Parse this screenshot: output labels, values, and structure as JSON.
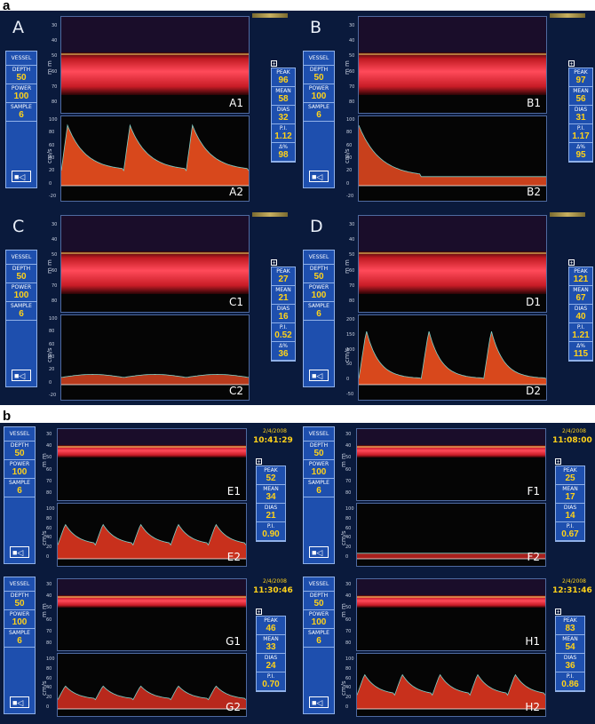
{
  "figure": {
    "section_a_letter": "a",
    "section_b_letter": "b",
    "setting_labels": {
      "vessel": "VESSEL",
      "depth": "DEPTH",
      "power": "POWER",
      "sample": "SAMPLE"
    },
    "stat_labels": {
      "peak": "PEAK",
      "mean": "MEAN",
      "dias": "DIAS",
      "pi": "P.I.",
      "delta": "Δ%"
    },
    "units": {
      "mm": "m m",
      "cms": "cm/s"
    },
    "mmode_ticks": [
      "30",
      "40",
      "50",
      "60",
      "70",
      "80"
    ],
    "spec_ticks_a": [
      "100",
      "80",
      "60",
      "40",
      "20",
      "0",
      "-20"
    ],
    "spec_ticks_d": [
      "200",
      "150",
      "100",
      "50",
      "0",
      "-50"
    ],
    "spec_ticks_b": [
      "100",
      "80",
      "60",
      "40",
      "20",
      "0"
    ],
    "plus": "+"
  },
  "panels": {
    "A": {
      "letter": "A",
      "m_label": "A1",
      "s_label": "A2",
      "depth": "50",
      "power": "100",
      "sample": "6",
      "peak": "96",
      "mean": "58",
      "dias": "32",
      "pi": "1.12",
      "delta": "98"
    },
    "B": {
      "letter": "B",
      "m_label": "B1",
      "s_label": "B2",
      "depth": "50",
      "power": "100",
      "sample": "6",
      "peak": "97",
      "mean": "56",
      "dias": "31",
      "pi": "1.17",
      "delta": "95"
    },
    "C": {
      "letter": "C",
      "m_label": "C1",
      "s_label": "C2",
      "depth": "50",
      "power": "100",
      "sample": "6",
      "peak": "27",
      "mean": "21",
      "dias": "16",
      "pi": "0.52",
      "delta": "36"
    },
    "D": {
      "letter": "D",
      "m_label": "D1",
      "s_label": "D2",
      "depth": "50",
      "power": "100",
      "sample": "6",
      "peak": "121",
      "mean": "67",
      "dias": "40",
      "pi": "1.21",
      "delta": "115"
    },
    "E": {
      "m_label": "E1",
      "s_label": "E2",
      "date": "2/4/2008",
      "time": "10:41:29",
      "depth": "50",
      "power": "100",
      "sample": "6",
      "peak": "52",
      "mean": "34",
      "dias": "21",
      "pi": "0.90"
    },
    "F": {
      "m_label": "F1",
      "s_label": "F2",
      "date": "2/4/2008",
      "time": "11:08:00",
      "depth": "50",
      "power": "100",
      "sample": "6",
      "peak": "25",
      "mean": "17",
      "dias": "14",
      "pi": "0.67"
    },
    "G": {
      "m_label": "G1",
      "s_label": "G2",
      "date": "2/4/2008",
      "time": "11:30:46",
      "depth": "50",
      "power": "100",
      "sample": "6",
      "peak": "46",
      "mean": "33",
      "dias": "24",
      "pi": "0.70"
    },
    "H": {
      "m_label": "H1",
      "s_label": "H2",
      "date": "2/4/2008",
      "time": "12:31:46",
      "depth": "50",
      "power": "100",
      "sample": "6",
      "peak": "83",
      "mean": "54",
      "dias": "36",
      "pi": "0.86"
    }
  },
  "colors": {
    "background": "#0a1a3c",
    "panel_blue": "#1e4fae",
    "value_yellow": "#ffd21a",
    "doppler_red": "#e8282a",
    "envelope": "#7fd0c8"
  }
}
